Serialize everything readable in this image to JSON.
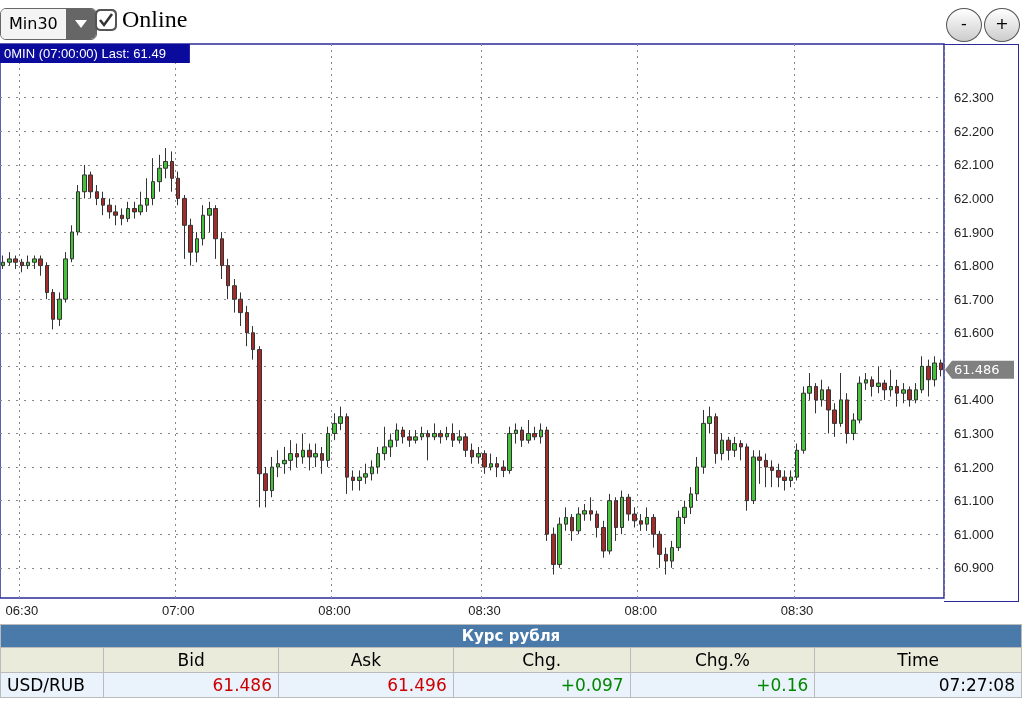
{
  "chart_data": {
    "type": "candlestick",
    "title": "0MIN (07:00:00) Last: 61.49",
    "categories": [
      null,
      null,
      null,
      "06:30",
      null,
      null,
      null,
      null,
      null,
      null,
      null,
      null,
      null,
      null,
      null,
      null,
      null,
      null,
      null,
      null,
      null,
      null,
      null,
      null,
      null,
      null,
      null,
      null,
      "07:00",
      null,
      null,
      null,
      null,
      null,
      null,
      null,
      null,
      null,
      null,
      null,
      null,
      null,
      null,
      null,
      null,
      null,
      null,
      null,
      null,
      null,
      null,
      null,
      null,
      "08:00",
      null,
      null,
      null,
      null,
      null,
      null,
      null,
      null,
      null,
      null,
      null,
      null,
      null,
      null,
      null,
      null,
      null,
      null,
      null,
      null,
      null,
      null,
      null,
      "08:30",
      null,
      null,
      null,
      null,
      null,
      null,
      null,
      null,
      null,
      null,
      null,
      null,
      null,
      null,
      null,
      null,
      null,
      null,
      null,
      null,
      null,
      null,
      null,
      null,
      "08:00",
      null,
      null,
      null,
      null,
      null,
      null,
      null,
      null,
      null,
      null,
      null,
      null,
      null,
      null,
      null,
      null,
      null,
      null,
      null,
      null,
      null,
      null,
      null,
      null,
      "08:30",
      null,
      null,
      null,
      null,
      null,
      null,
      null,
      null,
      null,
      null,
      null,
      null,
      null,
      null,
      null,
      null,
      null,
      null,
      null,
      null,
      null,
      null,
      null
    ],
    "ohlc": [
      [
        61.8,
        61.83,
        61.79,
        61.81
      ],
      [
        61.81,
        61.84,
        61.8,
        61.82
      ],
      [
        61.82,
        61.83,
        61.79,
        61.81
      ],
      [
        61.81,
        61.82,
        61.78,
        61.8
      ],
      [
        61.8,
        61.83,
        61.79,
        61.81
      ],
      [
        61.81,
        61.83,
        61.79,
        61.82
      ],
      [
        61.82,
        61.83,
        61.77,
        61.8
      ],
      [
        61.8,
        61.81,
        61.7,
        61.72
      ],
      [
        61.72,
        61.73,
        61.61,
        61.64
      ],
      [
        61.64,
        61.72,
        61.62,
        61.7
      ],
      [
        61.7,
        61.84,
        61.69,
        61.82
      ],
      [
        61.82,
        61.92,
        61.81,
        61.9
      ],
      [
        61.9,
        62.04,
        61.89,
        62.02
      ],
      [
        62.02,
        62.1,
        62.0,
        62.07
      ],
      [
        62.07,
        62.08,
        62.0,
        62.02
      ],
      [
        62.02,
        62.04,
        61.98,
        62.0
      ],
      [
        62.0,
        62.02,
        61.95,
        61.98
      ],
      [
        61.98,
        62.0,
        61.94,
        61.96
      ],
      [
        61.96,
        61.98,
        61.92,
        61.95
      ],
      [
        61.95,
        61.97,
        61.92,
        61.94
      ],
      [
        61.94,
        61.99,
        61.93,
        61.97
      ],
      [
        61.97,
        61.99,
        61.94,
        61.96
      ],
      [
        61.96,
        62.02,
        61.95,
        61.98
      ],
      [
        61.98,
        62.06,
        61.96,
        62.0
      ],
      [
        62.0,
        62.12,
        61.98,
        62.05
      ],
      [
        62.05,
        62.13,
        62.02,
        62.09
      ],
      [
        62.09,
        62.15,
        62.06,
        62.11
      ],
      [
        62.11,
        62.14,
        62.02,
        62.06
      ],
      [
        62.06,
        62.08,
        61.98,
        62.0
      ],
      [
        62.0,
        62.01,
        61.82,
        61.92
      ],
      [
        61.92,
        61.94,
        61.8,
        61.84
      ],
      [
        61.84,
        61.9,
        61.81,
        61.88
      ],
      [
        61.88,
        61.98,
        61.86,
        61.95
      ],
      [
        61.95,
        61.99,
        61.9,
        61.97
      ],
      [
        61.97,
        61.98,
        61.82,
        61.88
      ],
      [
        61.88,
        61.9,
        61.76,
        61.8
      ],
      [
        61.8,
        61.82,
        61.7,
        61.74
      ],
      [
        61.74,
        61.76,
        61.66,
        61.7
      ],
      [
        61.7,
        61.72,
        61.62,
        61.66
      ],
      [
        61.66,
        61.68,
        61.56,
        61.6
      ],
      [
        61.6,
        61.62,
        61.52,
        61.55
      ],
      [
        61.55,
        61.56,
        61.08,
        61.18
      ],
      [
        61.18,
        61.2,
        61.08,
        61.13
      ],
      [
        61.13,
        61.23,
        61.11,
        61.2
      ],
      [
        61.2,
        61.25,
        61.17,
        61.21
      ],
      [
        61.21,
        61.26,
        61.18,
        61.22
      ],
      [
        61.22,
        61.28,
        61.19,
        61.24
      ],
      [
        61.24,
        61.27,
        61.2,
        61.23
      ],
      [
        61.23,
        61.3,
        61.21,
        61.25
      ],
      [
        61.25,
        61.27,
        61.19,
        61.23
      ],
      [
        61.23,
        61.27,
        61.2,
        61.24
      ],
      [
        61.24,
        61.26,
        61.18,
        61.22
      ],
      [
        61.22,
        61.32,
        61.2,
        61.3
      ],
      [
        61.3,
        61.36,
        61.28,
        61.33
      ],
      [
        61.33,
        61.38,
        61.31,
        61.35
      ],
      [
        61.35,
        61.36,
        61.12,
        61.17
      ],
      [
        61.17,
        61.19,
        61.13,
        61.16
      ],
      [
        61.16,
        61.19,
        61.13,
        61.17
      ],
      [
        61.17,
        61.21,
        61.15,
        61.18
      ],
      [
        61.18,
        61.22,
        61.16,
        61.2
      ],
      [
        61.2,
        61.26,
        61.18,
        61.24
      ],
      [
        61.24,
        61.32,
        61.22,
        61.26
      ],
      [
        61.26,
        61.3,
        61.23,
        61.28
      ],
      [
        61.28,
        61.33,
        61.26,
        61.31
      ],
      [
        61.31,
        61.32,
        61.27,
        61.29
      ],
      [
        61.29,
        61.31,
        61.26,
        61.28
      ],
      [
        61.28,
        61.31,
        61.27,
        61.29
      ],
      [
        61.29,
        61.32,
        61.28,
        61.3
      ],
      [
        61.3,
        61.31,
        61.22,
        61.29
      ],
      [
        61.29,
        61.33,
        61.28,
        61.3
      ],
      [
        61.3,
        61.31,
        61.27,
        61.29
      ],
      [
        61.29,
        61.32,
        61.28,
        61.3
      ],
      [
        61.3,
        61.33,
        61.26,
        61.28
      ],
      [
        61.28,
        61.31,
        61.27,
        61.29
      ],
      [
        61.29,
        61.3,
        61.23,
        61.25
      ],
      [
        61.25,
        61.27,
        61.21,
        61.23
      ],
      [
        61.23,
        61.26,
        61.21,
        61.24
      ],
      [
        61.24,
        61.25,
        61.18,
        61.2
      ],
      [
        61.2,
        61.24,
        61.19,
        61.21
      ],
      [
        61.21,
        61.23,
        61.17,
        61.2
      ],
      [
        61.2,
        61.22,
        61.17,
        61.19
      ],
      [
        61.19,
        61.32,
        61.18,
        61.3
      ],
      [
        61.3,
        61.33,
        61.27,
        61.31
      ],
      [
        61.31,
        61.32,
        61.26,
        61.28
      ],
      [
        61.28,
        61.34,
        61.27,
        61.3
      ],
      [
        61.3,
        61.32,
        61.28,
        61.29
      ],
      [
        61.29,
        61.33,
        61.27,
        61.31
      ],
      [
        61.31,
        61.32,
        60.98,
        61.0
      ],
      [
        61.0,
        61.02,
        60.88,
        60.91
      ],
      [
        60.91,
        61.05,
        60.9,
        61.03
      ],
      [
        61.03,
        61.08,
        61.01,
        61.05
      ],
      [
        61.05,
        61.06,
        60.98,
        61.01
      ],
      [
        61.01,
        61.08,
        61.0,
        61.06
      ],
      [
        61.06,
        61.09,
        61.04,
        61.07
      ],
      [
        61.07,
        61.11,
        61.04,
        61.06
      ],
      [
        61.06,
        61.07,
        60.99,
        61.02
      ],
      [
        61.02,
        61.04,
        60.93,
        60.95
      ],
      [
        60.95,
        61.12,
        60.94,
        61.1
      ],
      [
        61.1,
        61.11,
        60.98,
        61.02
      ],
      [
        61.02,
        61.13,
        61.0,
        61.11
      ],
      [
        61.11,
        61.12,
        61.04,
        61.06
      ],
      [
        61.06,
        61.08,
        61.02,
        61.04
      ],
      [
        61.04,
        61.06,
        61.01,
        61.03
      ],
      [
        61.03,
        61.08,
        61.01,
        61.05
      ],
      [
        61.05,
        61.06,
        60.96,
        61.0
      ],
      [
        61.0,
        61.01,
        60.9,
        60.94
      ],
      [
        60.94,
        60.96,
        60.88,
        60.92
      ],
      [
        60.92,
        60.98,
        60.9,
        60.96
      ],
      [
        60.96,
        61.07,
        60.95,
        61.05
      ],
      [
        61.05,
        61.1,
        61.03,
        61.08
      ],
      [
        61.08,
        61.14,
        61.06,
        61.12
      ],
      [
        61.12,
        61.23,
        61.1,
        61.2
      ],
      [
        61.2,
        61.37,
        61.18,
        61.33
      ],
      [
        61.33,
        61.38,
        61.3,
        61.35
      ],
      [
        61.35,
        61.36,
        61.21,
        61.24
      ],
      [
        61.24,
        61.3,
        61.22,
        61.28
      ],
      [
        61.28,
        61.29,
        61.22,
        61.25
      ],
      [
        61.25,
        61.29,
        61.23,
        61.27
      ],
      [
        61.27,
        61.28,
        61.22,
        61.26
      ],
      [
        61.26,
        61.27,
        61.07,
        61.1
      ],
      [
        61.1,
        61.25,
        61.09,
        61.23
      ],
      [
        61.23,
        61.25,
        61.15,
        61.22
      ],
      [
        61.22,
        61.24,
        61.14,
        61.2
      ],
      [
        61.2,
        61.22,
        61.14,
        61.19
      ],
      [
        61.19,
        61.21,
        61.14,
        61.17
      ],
      [
        61.17,
        61.19,
        61.13,
        61.16
      ],
      [
        61.16,
        61.19,
        61.14,
        61.17
      ],
      [
        61.17,
        61.27,
        61.16,
        61.25
      ],
      [
        61.25,
        61.44,
        61.24,
        61.42
      ],
      [
        61.42,
        61.48,
        61.4,
        61.44
      ],
      [
        61.44,
        61.45,
        61.36,
        61.4
      ],
      [
        61.4,
        61.46,
        61.38,
        61.43
      ],
      [
        61.43,
        61.44,
        61.3,
        61.37
      ],
      [
        61.37,
        61.39,
        61.29,
        61.33
      ],
      [
        61.33,
        61.48,
        61.32,
        61.4
      ],
      [
        61.4,
        61.42,
        61.27,
        61.3
      ],
      [
        61.3,
        61.36,
        61.28,
        61.34
      ],
      [
        61.34,
        61.47,
        61.33,
        61.45
      ],
      [
        61.45,
        61.48,
        61.43,
        61.46
      ],
      [
        61.46,
        61.47,
        61.41,
        61.44
      ],
      [
        61.44,
        61.5,
        61.42,
        61.45
      ],
      [
        61.45,
        61.46,
        61.4,
        61.43
      ],
      [
        61.43,
        61.49,
        61.41,
        61.44
      ],
      [
        61.44,
        61.46,
        61.38,
        61.42
      ],
      [
        61.42,
        61.45,
        61.39,
        61.43
      ],
      [
        61.43,
        61.44,
        61.38,
        61.4
      ],
      [
        61.4,
        61.45,
        61.39,
        61.43
      ],
      [
        61.43,
        61.53,
        61.42,
        61.5
      ],
      [
        61.5,
        61.52,
        61.41,
        61.46
      ],
      [
        61.46,
        61.53,
        61.44,
        61.51
      ],
      [
        61.51,
        61.52,
        61.47,
        61.49
      ]
    ],
    "colors": [
      "#45c03a",
      "#45c03a",
      "#a52a2a",
      "#a52a2a",
      "#45c03a",
      "#45c03a",
      "#a52a2a",
      "#a52a2a",
      "#a52a2a",
      "#45c03a",
      "#45c03a",
      "#45c03a",
      "#45c03a",
      "#45c03a",
      "#a52a2a",
      "#a52a2a",
      "#a52a2a",
      "#a52a2a",
      "#a52a2a",
      "#a52a2a",
      "#45c03a",
      "#a52a2a",
      "#45c03a",
      "#45c03a",
      "#45c03a",
      "#45c03a",
      "#45c03a",
      "#a52a2a",
      "#a52a2a",
      "#a52a2a",
      "#a52a2a",
      "#45c03a",
      "#45c03a",
      "#45c03a",
      "#a52a2a",
      "#a52a2a",
      "#a52a2a",
      "#a52a2a",
      "#a52a2a",
      "#a52a2a",
      "#a52a2a",
      "#a52a2a",
      "#a52a2a",
      "#45c03a",
      "#45c03a",
      "#45c03a",
      "#45c03a",
      "#a52a2a",
      "#45c03a",
      "#a52a2a",
      "#45c03a",
      "#a52a2a",
      "#45c03a",
      "#45c03a",
      "#45c03a",
      "#a52a2a",
      "#a52a2a",
      "#45c03a",
      "#45c03a",
      "#45c03a",
      "#45c03a",
      "#45c03a",
      "#45c03a",
      "#45c03a",
      "#a52a2a",
      "#a52a2a",
      "#45c03a",
      "#45c03a",
      "#a52a2a",
      "#45c03a",
      "#a52a2a",
      "#45c03a",
      "#a52a2a",
      "#45c03a",
      "#a52a2a",
      "#a52a2a",
      "#45c03a",
      "#a52a2a",
      "#45c03a",
      "#a52a2a",
      "#a52a2a",
      "#45c03a",
      "#45c03a",
      "#a52a2a",
      "#45c03a",
      "#a52a2a",
      "#45c03a",
      "#a52a2a",
      "#a52a2a",
      "#45c03a",
      "#45c03a",
      "#a52a2a",
      "#45c03a",
      "#45c03a",
      "#a52a2a",
      "#a52a2a",
      "#a52a2a",
      "#45c03a",
      "#a52a2a",
      "#45c03a",
      "#a52a2a",
      "#a52a2a",
      "#a52a2a",
      "#45c03a",
      "#a52a2a",
      "#a52a2a",
      "#a52a2a",
      "#45c03a",
      "#45c03a",
      "#45c03a",
      "#45c03a",
      "#45c03a",
      "#45c03a",
      "#45c03a",
      "#a52a2a",
      "#45c03a",
      "#a52a2a",
      "#45c03a",
      "#a52a2a",
      "#a52a2a",
      "#45c03a",
      "#a52a2a",
      "#a52a2a",
      "#a52a2a",
      "#a52a2a",
      "#a52a2a",
      "#45c03a",
      "#45c03a",
      "#45c03a",
      "#45c03a",
      "#a52a2a",
      "#45c03a",
      "#a52a2a",
      "#a52a2a",
      "#45c03a",
      "#a52a2a",
      "#45c03a",
      "#45c03a",
      "#45c03a",
      "#a52a2a",
      "#45c03a",
      "#a52a2a",
      "#45c03a",
      "#a52a2a",
      "#45c03a",
      "#a52a2a",
      "#45c03a",
      "#45c03a",
      "#a52a2a",
      "#45c03a",
      "#a52a2a"
    ],
    "ylim": [
      60.81,
      62.46
    ],
    "yticks": [
      {
        "value": 60.9,
        "label": "60.900"
      },
      {
        "value": 61.0,
        "label": "61.000"
      },
      {
        "value": 61.1,
        "label": "61.100"
      },
      {
        "value": 61.2,
        "label": "61.200"
      },
      {
        "value": 61.3,
        "label": "61.300"
      },
      {
        "value": 61.4,
        "label": "61.400"
      },
      {
        "value": 61.5,
        "label": null
      },
      {
        "value": 61.6,
        "label": "61.600"
      },
      {
        "value": 61.7,
        "label": "61.700"
      },
      {
        "value": 61.8,
        "label": "61.800"
      },
      {
        "value": 61.9,
        "label": "61.900"
      },
      {
        "value": 62.0,
        "label": "62.000"
      },
      {
        "value": 62.1,
        "label": "62.100"
      },
      {
        "value": 62.2,
        "label": "62.200"
      },
      {
        "value": 62.3,
        "label": "62.300"
      }
    ],
    "grid": true,
    "annotations": [
      "Min30",
      "Online",
      "-",
      "+",
      "Курс рубля",
      "Bid",
      "Ask",
      "Chg.",
      "Chg.%",
      "Time",
      "USD/RUB",
      "61.486",
      "61.496",
      "+0.097",
      "+0.16",
      "07:27:08",
      "61.486"
    ]
  }
}
